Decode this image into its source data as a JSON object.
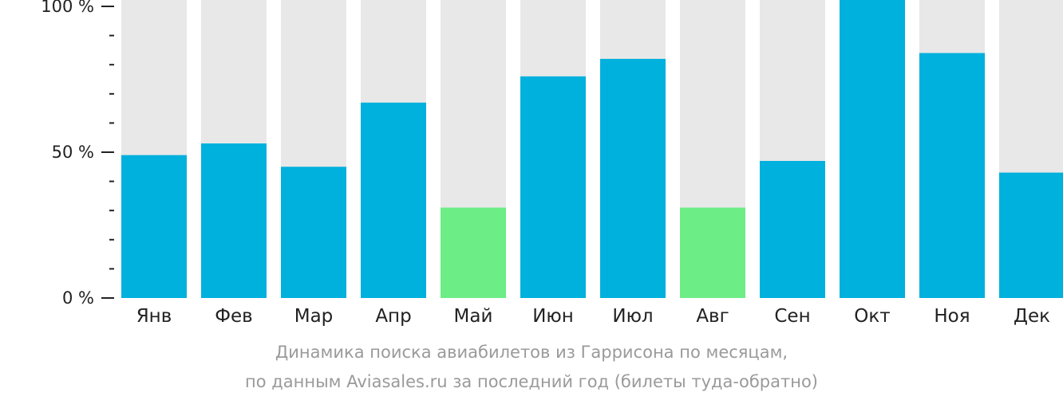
{
  "chart_data": {
    "type": "bar",
    "categories": [
      "Янв",
      "Фев",
      "Мар",
      "Апр",
      "Май",
      "Июн",
      "Июл",
      "Авг",
      "Сен",
      "Окт",
      "Ноя",
      "Дек"
    ],
    "values": [
      49,
      53,
      45,
      67,
      31,
      76,
      82,
      31,
      47,
      104,
      84,
      43
    ],
    "ylim": [
      0,
      100
    ],
    "yticks": [
      0,
      50,
      100
    ],
    "ytick_labels": [
      "0 %",
      "50 %",
      "100 %"
    ],
    "colors": {
      "bar": "#00b0dd",
      "bar_low": "#6ced86",
      "background_bar": "#e8e8e8",
      "axis": "#222222"
    },
    "low_categories": [
      "Май",
      "Авг"
    ],
    "caption_line1": "Динамика поиска авиабилетов из Гаррисона по месяцам,",
    "caption_line2": "по данным Aviasales.ru за последний год (билеты туда-обратно)"
  }
}
